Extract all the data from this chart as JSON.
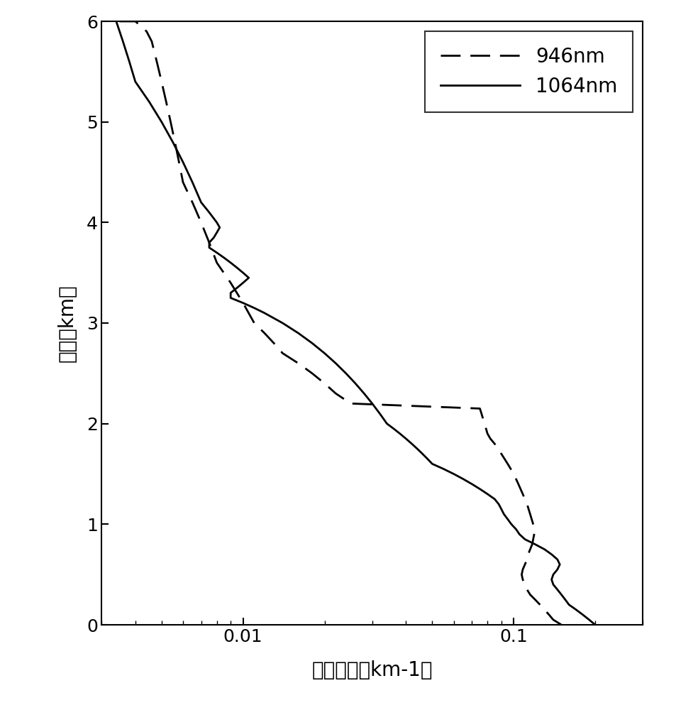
{
  "xlabel": "消光系数（km-1）",
  "ylabel": "高度（km）",
  "xlim_low": 0.003,
  "xlim_high": 0.3,
  "ylim_low": 0,
  "ylim_high": 6,
  "yticks": [
    0,
    1,
    2,
    3,
    4,
    5,
    6
  ],
  "xtick_labels": [
    "0.01",
    "0.1"
  ],
  "xtick_vals": [
    0.01,
    0.1
  ],
  "legend_946": "946nm",
  "legend_1064": "1064nm",
  "line_color": "#000000",
  "background_color": "#ffffff",
  "curve_946_x": [
    0.15,
    0.14,
    0.135,
    0.13,
    0.125,
    0.12,
    0.115,
    0.112,
    0.11,
    0.108,
    0.107,
    0.108,
    0.11,
    0.112,
    0.113,
    0.115,
    0.117,
    0.118,
    0.119,
    0.12,
    0.118,
    0.115,
    0.112,
    0.108,
    0.104,
    0.1,
    0.095,
    0.09,
    0.085,
    0.082,
    0.08,
    0.079,
    0.078,
    0.077,
    0.076,
    0.075,
    0.025,
    0.022,
    0.02,
    0.018,
    0.016,
    0.014,
    0.013,
    0.012,
    0.011,
    0.01,
    0.009,
    0.008,
    0.0075,
    0.007,
    0.0065,
    0.006,
    0.0058,
    0.0056,
    0.0054,
    0.0052,
    0.005,
    0.0048,
    0.0046,
    0.0044,
    0.0042,
    0.004,
    0.004,
    0.0038,
    0.0036,
    0.0035
  ],
  "curve_946_y": [
    0.0,
    0.05,
    0.1,
    0.15,
    0.2,
    0.25,
    0.3,
    0.35,
    0.4,
    0.45,
    0.5,
    0.55,
    0.6,
    0.65,
    0.7,
    0.75,
    0.8,
    0.85,
    0.9,
    0.95,
    1.0,
    1.1,
    1.2,
    1.3,
    1.4,
    1.5,
    1.6,
    1.7,
    1.8,
    1.85,
    1.9,
    1.95,
    2.0,
    2.05,
    2.1,
    2.15,
    2.2,
    2.3,
    2.4,
    2.5,
    2.6,
    2.7,
    2.8,
    2.9,
    3.0,
    3.2,
    3.4,
    3.6,
    3.8,
    4.0,
    4.2,
    4.4,
    4.6,
    4.8,
    5.0,
    5.2,
    5.4,
    5.6,
    5.8,
    5.9,
    5.95,
    6.0,
    6.0,
    6.0,
    6.0,
    6.0
  ],
  "curve_1064_x": [
    0.2,
    0.19,
    0.18,
    0.17,
    0.16,
    0.155,
    0.15,
    0.145,
    0.14,
    0.138,
    0.14,
    0.145,
    0.148,
    0.145,
    0.138,
    0.13,
    0.12,
    0.11,
    0.105,
    0.102,
    0.098,
    0.095,
    0.092,
    0.09,
    0.088,
    0.085,
    0.08,
    0.075,
    0.07,
    0.065,
    0.06,
    0.055,
    0.05,
    0.048,
    0.046,
    0.044,
    0.042,
    0.04,
    0.038,
    0.036,
    0.034,
    0.032,
    0.03,
    0.028,
    0.026,
    0.024,
    0.022,
    0.02,
    0.018,
    0.016,
    0.014,
    0.012,
    0.011,
    0.01,
    0.009,
    0.009,
    0.0095,
    0.01,
    0.0105,
    0.01,
    0.0095,
    0.009,
    0.0085,
    0.008,
    0.0075,
    0.0075,
    0.0078,
    0.008,
    0.0082,
    0.008,
    0.0075,
    0.007,
    0.0065,
    0.006,
    0.0055,
    0.005,
    0.0045,
    0.004,
    0.0038,
    0.0036,
    0.0034
  ],
  "curve_1064_y": [
    0.0,
    0.05,
    0.1,
    0.15,
    0.2,
    0.25,
    0.3,
    0.35,
    0.4,
    0.45,
    0.5,
    0.55,
    0.6,
    0.65,
    0.7,
    0.75,
    0.8,
    0.85,
    0.9,
    0.95,
    1.0,
    1.05,
    1.1,
    1.15,
    1.2,
    1.25,
    1.3,
    1.35,
    1.4,
    1.45,
    1.5,
    1.55,
    1.6,
    1.65,
    1.7,
    1.75,
    1.8,
    1.85,
    1.9,
    1.95,
    2.0,
    2.1,
    2.2,
    2.3,
    2.4,
    2.5,
    2.6,
    2.7,
    2.8,
    2.9,
    3.0,
    3.1,
    3.15,
    3.2,
    3.25,
    3.3,
    3.35,
    3.4,
    3.45,
    3.5,
    3.55,
    3.6,
    3.65,
    3.7,
    3.75,
    3.8,
    3.85,
    3.9,
    3.95,
    4.0,
    4.1,
    4.2,
    4.4,
    4.6,
    4.8,
    5.0,
    5.2,
    5.4,
    5.6,
    5.8,
    6.0
  ]
}
